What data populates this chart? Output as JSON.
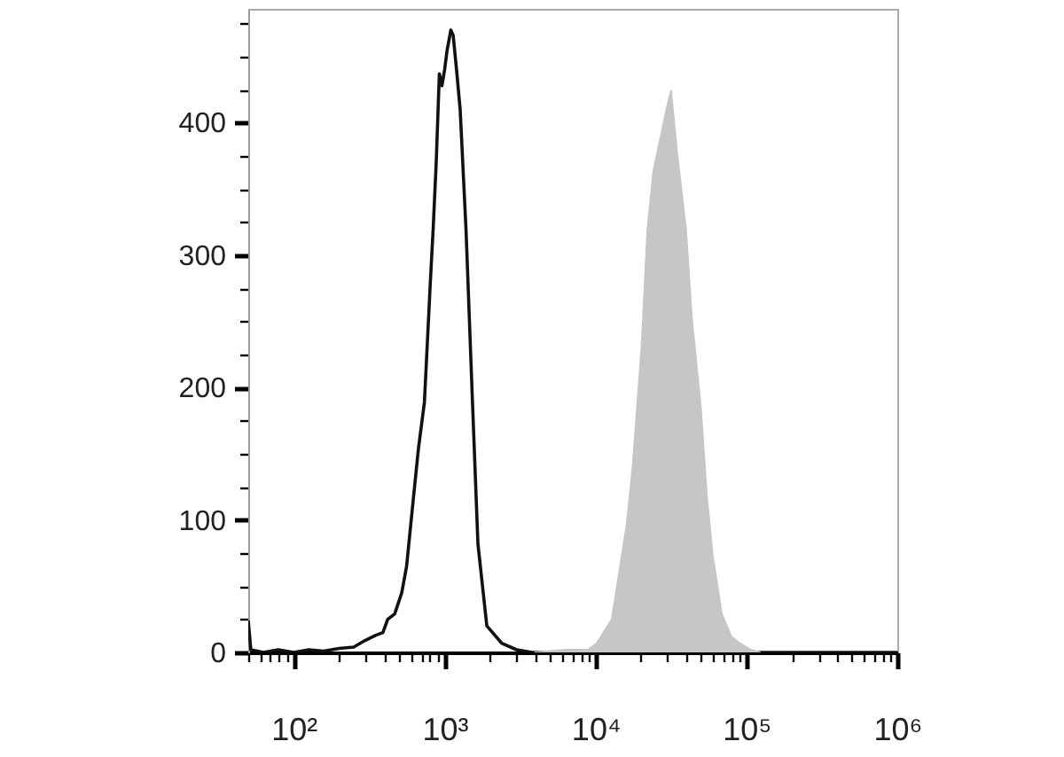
{
  "chart_data": {
    "type": "line",
    "log": "x",
    "xlim": [
      50,
      1000000
    ],
    "xticks": [
      {
        "value": 50,
        "label": null
      },
      {
        "value": 60,
        "label": null
      },
      {
        "value": 70,
        "label": null
      },
      {
        "value": 80,
        "label": null
      },
      {
        "value": 90,
        "label": null
      },
      {
        "value": 100,
        "label": "10²"
      },
      {
        "value": 200,
        "label": null
      },
      {
        "value": 300,
        "label": null
      },
      {
        "value": 400,
        "label": null
      },
      {
        "value": 500,
        "label": null
      },
      {
        "value": 600,
        "label": null
      },
      {
        "value": 700,
        "label": null
      },
      {
        "value": 800,
        "label": null
      },
      {
        "value": 900,
        "label": null
      },
      {
        "value": 1000,
        "label": "10³"
      },
      {
        "value": 2000,
        "label": null
      },
      {
        "value": 3000,
        "label": null
      },
      {
        "value": 4000,
        "label": null
      },
      {
        "value": 5000,
        "label": null
      },
      {
        "value": 6000,
        "label": null
      },
      {
        "value": 7000,
        "label": null
      },
      {
        "value": 8000,
        "label": null
      },
      {
        "value": 9000,
        "label": null
      },
      {
        "value": 10000,
        "label": "10⁴"
      },
      {
        "value": 20000,
        "label": null
      },
      {
        "value": 30000,
        "label": null
      },
      {
        "value": 40000,
        "label": null
      },
      {
        "value": 50000,
        "label": null
      },
      {
        "value": 60000,
        "label": null
      },
      {
        "value": 70000,
        "label": null
      },
      {
        "value": 80000,
        "label": null
      },
      {
        "value": 90000,
        "label": null
      },
      {
        "value": 100000,
        "label": "10⁵"
      },
      {
        "value": 200000,
        "label": null
      },
      {
        "value": 300000,
        "label": null
      },
      {
        "value": 400000,
        "label": null
      },
      {
        "value": 500000,
        "label": null
      },
      {
        "value": 600000,
        "label": null
      },
      {
        "value": 700000,
        "label": null
      },
      {
        "value": 800000,
        "label": null
      },
      {
        "value": 900000,
        "label": null
      },
      {
        "value": 1000000,
        "label": "10⁶"
      }
    ],
    "ylim": [
      0,
      486
    ],
    "yticks": [
      0,
      {
        "value": 25,
        "label": null
      },
      {
        "value": 50,
        "label": null
      },
      {
        "value": 75,
        "label": null
      },
      100,
      {
        "value": 125,
        "label": null
      },
      {
        "value": 150,
        "label": null
      },
      {
        "value": 175,
        "label": null
      },
      200,
      {
        "value": 225,
        "label": null
      },
      {
        "value": 250,
        "label": null
      },
      {
        "value": 275,
        "label": null
      },
      300,
      {
        "value": 325,
        "label": null
      },
      {
        "value": 350,
        "label": null
      },
      {
        "value": 375,
        "label": null
      },
      400,
      {
        "value": 425,
        "label": null
      },
      {
        "value": 450,
        "label": null
      },
      {
        "value": 475,
        "label": null
      }
    ],
    "series": [
      {
        "type": "line",
        "color": "#111111",
        "x": [
          50,
          52,
          63,
          79,
          100,
          126,
          158,
          200,
          250,
          297,
          350,
          390,
          420,
          467,
          520,
          560,
          612,
          671,
          735,
          804,
          840,
          880,
          923,
          960,
          1000,
          1040,
          1100,
          1140,
          1200,
          1268,
          1387,
          1520,
          1663,
          1905,
          2388,
          3000,
          3800,
          1000000
        ],
        "values": [
          24,
          2,
          0,
          2,
          0,
          2,
          1,
          3,
          4,
          9,
          13,
          15,
          25,
          29,
          45,
          65,
          109,
          154,
          189,
          279,
          320,
          370,
          437,
          428,
          440,
          455,
          470,
          466,
          440,
          410,
          319,
          198,
          82,
          20,
          7,
          2,
          0,
          0
        ]
      },
      {
        "type": "area",
        "color": "#c6c6c6",
        "x": [
          3981,
          6310,
          8913,
          10209,
          12823,
          16069,
          17620,
          20184,
          22080,
          24155,
          27669,
          29512,
          31696,
          34754,
          39811,
          43551,
          49888,
          54702,
          59841,
          68707,
          79433,
          90157,
          107152,
          123027
        ],
        "values": [
          0,
          2,
          2,
          7,
          25,
          96,
          140,
          230,
          319,
          363,
          395,
          410,
          424,
          377,
          319,
          252,
          185,
          118,
          73,
          29,
          12,
          7,
          2,
          0
        ]
      }
    ]
  }
}
